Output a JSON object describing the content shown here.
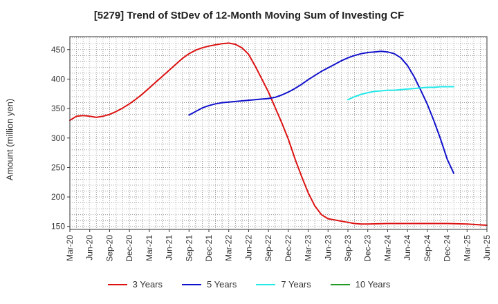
{
  "chart_data": {
    "type": "line",
    "title": "[5279]  Trend of StDev of 12-Month Moving Sum of Investing CF",
    "xlabel": "",
    "ylabel": "Amount (million yen)",
    "ylim": [
      145,
      472
    ],
    "yticks": [
      150,
      200,
      250,
      300,
      350,
      400,
      450
    ],
    "x_labels": [
      "Mar-20",
      "Jun-20",
      "Sep-20",
      "Dec-20",
      "Mar-21",
      "Jun-21",
      "Sep-21",
      "Dec-21",
      "Mar-22",
      "Jun-22",
      "Sep-22",
      "Dec-22",
      "Mar-23",
      "Jun-23",
      "Sep-23",
      "Dec-23",
      "Mar-24",
      "Jun-24",
      "Sep-24",
      "Dec-24",
      "Mar-25",
      "Jun-25"
    ],
    "grid": true,
    "legend_position": "bottom",
    "series": [
      {
        "name": "3 Years",
        "color": "#dd1111",
        "points": [
          [
            0,
            330
          ],
          [
            1,
            337
          ],
          [
            2,
            338
          ],
          [
            3,
            337
          ],
          [
            4,
            335
          ],
          [
            5,
            337
          ],
          [
            6,
            340
          ],
          [
            7,
            345
          ],
          [
            8,
            351
          ],
          [
            9,
            358
          ],
          [
            10,
            366
          ],
          [
            11,
            375
          ],
          [
            12,
            385
          ],
          [
            13,
            395
          ],
          [
            14,
            405
          ],
          [
            15,
            415
          ],
          [
            16,
            425
          ],
          [
            17,
            435
          ],
          [
            18,
            443
          ],
          [
            19,
            449
          ],
          [
            20,
            453
          ],
          [
            21,
            456
          ],
          [
            22,
            458
          ],
          [
            23,
            460
          ],
          [
            24,
            461
          ],
          [
            25,
            459
          ],
          [
            26,
            453
          ],
          [
            27,
            442
          ],
          [
            28,
            422
          ],
          [
            29,
            400
          ],
          [
            30,
            378
          ],
          [
            31,
            352
          ],
          [
            32,
            326
          ],
          [
            33,
            298
          ],
          [
            34,
            265
          ],
          [
            35,
            235
          ],
          [
            36,
            207
          ],
          [
            37,
            185
          ],
          [
            38,
            170
          ],
          [
            39,
            163
          ],
          [
            40,
            161
          ],
          [
            41,
            159
          ],
          [
            42,
            157
          ],
          [
            43,
            155
          ],
          [
            44,
            154
          ],
          [
            45,
            154
          ],
          [
            48,
            155
          ],
          [
            53,
            155
          ],
          [
            57,
            155
          ],
          [
            60,
            154
          ],
          [
            63,
            152
          ]
        ]
      },
      {
        "name": "5 Years",
        "color": "#1111cc",
        "points": [
          [
            18,
            339
          ],
          [
            19,
            345
          ],
          [
            20,
            351
          ],
          [
            21,
            355
          ],
          [
            22,
            358
          ],
          [
            23,
            360
          ],
          [
            24,
            361
          ],
          [
            25,
            362
          ],
          [
            26,
            363
          ],
          [
            27,
            364
          ],
          [
            28,
            365
          ],
          [
            29,
            366
          ],
          [
            30,
            367
          ],
          [
            31,
            369
          ],
          [
            32,
            373
          ],
          [
            33,
            378
          ],
          [
            34,
            384
          ],
          [
            35,
            391
          ],
          [
            36,
            399
          ],
          [
            37,
            406
          ],
          [
            38,
            413
          ],
          [
            39,
            419
          ],
          [
            40,
            425
          ],
          [
            41,
            431
          ],
          [
            42,
            436
          ],
          [
            43,
            440
          ],
          [
            44,
            443
          ],
          [
            45,
            445
          ],
          [
            46,
            446
          ],
          [
            47,
            447
          ],
          [
            48,
            446
          ],
          [
            49,
            443
          ],
          [
            50,
            436
          ],
          [
            51,
            423
          ],
          [
            52,
            404
          ],
          [
            53,
            381
          ],
          [
            54,
            357
          ],
          [
            55,
            329
          ],
          [
            56,
            298
          ],
          [
            57,
            264
          ],
          [
            58,
            240
          ]
        ]
      },
      {
        "name": "7 Years",
        "color": "#22e8e8",
        "points": [
          [
            42,
            365
          ],
          [
            43,
            370
          ],
          [
            44,
            374
          ],
          [
            45,
            377
          ],
          [
            46,
            379
          ],
          [
            47,
            380
          ],
          [
            48,
            381
          ],
          [
            49,
            381
          ],
          [
            50,
            382
          ],
          [
            51,
            383
          ],
          [
            52,
            384
          ],
          [
            53,
            385
          ],
          [
            54,
            386
          ],
          [
            55,
            386
          ],
          [
            56,
            387
          ],
          [
            57,
            387
          ],
          [
            58,
            387
          ]
        ]
      },
      {
        "name": "10 Years",
        "color": "#229922",
        "points": []
      }
    ]
  }
}
